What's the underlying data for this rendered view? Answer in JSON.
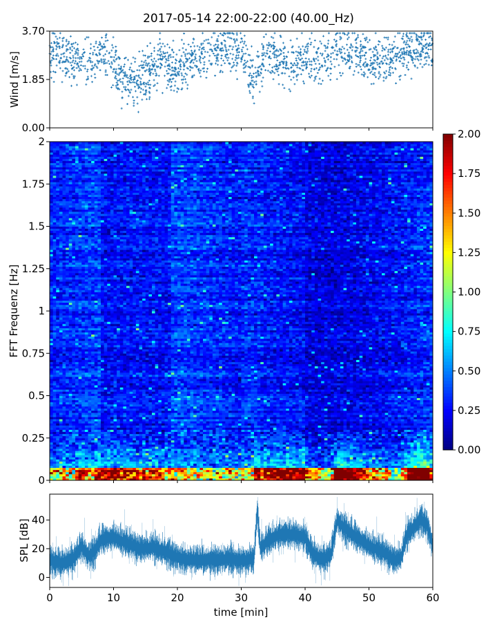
{
  "chart_data": [
    {
      "type": "scatter",
      "title": "2017-05-14 22:00-22:00 (40.00_Hz)",
      "ylabel": "Wind [m/s]",
      "xlabel": "",
      "xlim": [
        0,
        60
      ],
      "ylim": [
        0,
        3.7
      ],
      "yticks": [
        "0.00",
        "1.85",
        "3.70"
      ],
      "series": [
        {
          "color": "#1f77b4",
          "marker": "+",
          "points_description_x_min": [
            0,
            2,
            4,
            6,
            8,
            10,
            12,
            14,
            16,
            18,
            20,
            22,
            24,
            26,
            28,
            30,
            32,
            34,
            36,
            38,
            40,
            42,
            44,
            46,
            48,
            50,
            52,
            54,
            56,
            58,
            60
          ],
          "mean": [
            2.9,
            2.7,
            2.6,
            2.5,
            2.9,
            2.3,
            1.7,
            1.8,
            2.3,
            2.5,
            2.2,
            2.6,
            2.8,
            2.9,
            3.0,
            2.9,
            1.8,
            2.9,
            2.6,
            2.4,
            2.6,
            2.4,
            2.9,
            3.1,
            2.9,
            2.7,
            2.6,
            2.8,
            3.0,
            3.1,
            3.0
          ]
        }
      ]
    },
    {
      "type": "heatmap",
      "ylabel": "FFT Frequenz [Hz]",
      "xlabel": "",
      "xlim": [
        0,
        60
      ],
      "ylim": [
        0,
        2
      ],
      "yticks": [
        "0",
        "0.25",
        "0.5",
        "0.75",
        "1",
        "1.25",
        "1.5",
        "1.75",
        "2"
      ],
      "colormap": "jet",
      "colorbar": {
        "min": 0,
        "max": 2,
        "ticks": [
          "0.00",
          "0.25",
          "0.50",
          "0.75",
          "1.00",
          "1.25",
          "1.50",
          "1.75",
          "2.00"
        ]
      }
    },
    {
      "type": "line",
      "ylabel": "SPL [dB]",
      "xlabel": "time [min]",
      "xlim": [
        0,
        60
      ],
      "ylim": [
        -7,
        58
      ],
      "xticks": [
        "0",
        "10",
        "20",
        "30",
        "40",
        "50",
        "60"
      ],
      "yticks": [
        "0",
        "20",
        "40"
      ],
      "series": [
        {
          "color": "#1f77b4",
          "x": [
            0,
            2,
            4,
            5,
            6,
            7,
            8,
            10,
            12,
            14,
            16,
            18,
            20,
            22,
            24,
            26,
            28,
            30,
            31,
            32,
            32.5,
            33,
            34,
            36,
            38,
            40,
            41,
            42,
            43,
            44,
            45,
            46,
            48,
            50,
            52,
            54,
            55,
            56,
            57,
            58,
            59,
            60
          ],
          "values": [
            12,
            10,
            14,
            22,
            15,
            18,
            26,
            28,
            24,
            20,
            21,
            18,
            14,
            12,
            12,
            12,
            13,
            12,
            12,
            14,
            48,
            20,
            25,
            30,
            30,
            28,
            18,
            14,
            13,
            15,
            40,
            35,
            28,
            22,
            18,
            12,
            14,
            30,
            35,
            40,
            38,
            22
          ]
        }
      ]
    }
  ]
}
